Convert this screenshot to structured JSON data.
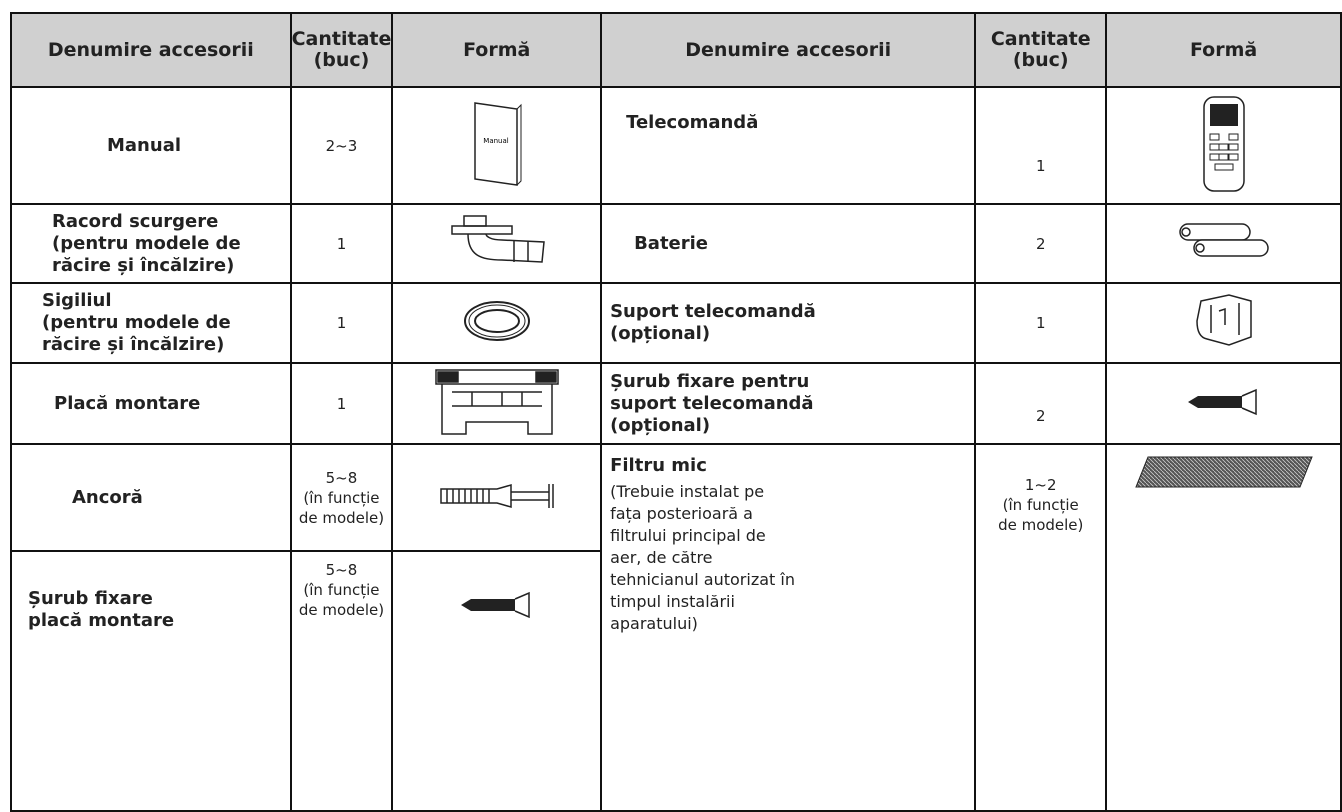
{
  "header": [
    "Denumire accesorii",
    "Cantitate (buc)",
    "Formă",
    "Denumire accesorii",
    "Cantitate (buc)",
    "Formă"
  ],
  "left": [
    {
      "name": [
        "Manual"
      ],
      "quantity": [
        "2~3"
      ]
    },
    {
      "name": [
        "Racord scurgere",
        "(pentru modele de",
        "răcire și încălzire)"
      ],
      "quantity": [
        "1"
      ]
    },
    {
      "name": [
        "Sigiliul",
        "(pentru modele de",
        "răcire și încălzire)"
      ],
      "quantity": [
        "1"
      ]
    },
    {
      "name": [
        "Placă montare"
      ],
      "quantity": [
        "1"
      ]
    },
    {
      "name": [
        "Ancoră"
      ],
      "quantity": [
        "5~8",
        "(în funcție",
        "de modele)"
      ]
    },
    {
      "name": [
        "Șurub fixare",
        "placă montare"
      ],
      "quantity": [
        "5~8",
        "(în funcție",
        "de modele)"
      ]
    }
  ],
  "right": [
    {
      "name": [
        "Telecomandă"
      ],
      "quantity": [
        "1"
      ]
    },
    {
      "name": [
        "Baterie"
      ],
      "quantity": [
        "2"
      ]
    },
    {
      "name": [
        "Suport telecomandă",
        "(opțional)"
      ],
      "quantity": [
        "1"
      ]
    },
    {
      "name": [
        "Șurub fixare pentru",
        "suport telecomandă",
        "(opțional)"
      ],
      "quantity": [
        "2"
      ]
    },
    {
      "name": [
        "Filtru mic"
      ],
      "note": [
        "(Trebuie instalat pe",
        "fața posterioară a",
        "filtrului principal de",
        "aer, de către",
        "tehnicianul autorizat în",
        "timpul instalării",
        "aparatului)"
      ],
      "quantity": [
        "1~2",
        "(în funcție",
        "de modele)"
      ]
    }
  ],
  "manual_icon_text": "Manual"
}
